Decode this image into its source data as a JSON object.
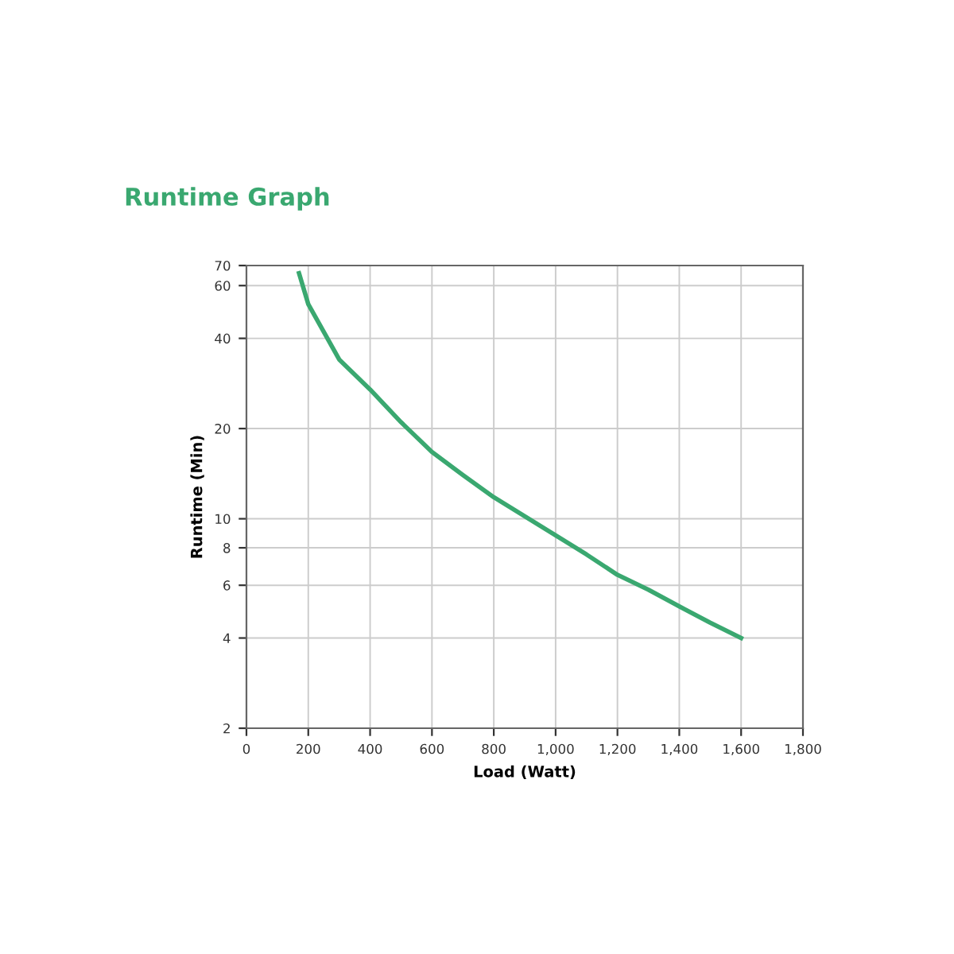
{
  "chart_data": {
    "type": "line",
    "title": "Runtime Graph",
    "xlabel": "Load (Watt)",
    "ylabel": "Runtime (Min)",
    "x": [
      170,
      200,
      300,
      400,
      500,
      600,
      700,
      800,
      900,
      1000,
      1100,
      1200,
      1300,
      1400,
      1500,
      1600
    ],
    "series": [
      {
        "color": "#3aa870",
        "values": [
          66,
          52,
          34,
          27,
          21,
          16.7,
          14,
          11.8,
          10.2,
          8.8,
          7.6,
          6.5,
          5.8,
          5.1,
          4.5,
          4.0
        ]
      }
    ],
    "log": "y",
    "xlim": [
      0,
      1800
    ],
    "ylim": [
      2,
      70
    ],
    "xticks": [
      0,
      200,
      400,
      600,
      800,
      {
        "value": 1000,
        "label": "1,000"
      },
      {
        "value": 1200,
        "label": "1,200"
      },
      {
        "value": 1400,
        "label": "1,400"
      },
      {
        "value": 1600,
        "label": "1,600"
      },
      {
        "value": 1800,
        "label": "1,800"
      }
    ],
    "yticks": [
      2,
      4,
      6,
      8,
      10,
      20,
      40,
      60,
      70
    ],
    "grid": true,
    "marker": "none",
    "line_style": "solid"
  }
}
